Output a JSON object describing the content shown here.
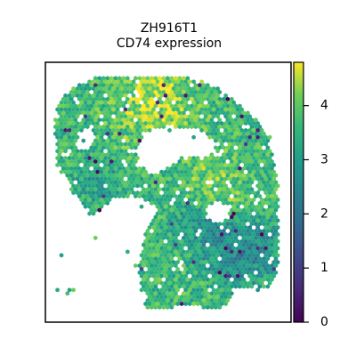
{
  "chart_data": {
    "type": "heatmap",
    "title": "ZH916T1",
    "subtitle": "CD74 expression",
    "xlabel": "",
    "ylabel": "",
    "grid": false,
    "colormap": "viridis",
    "colorbar": {
      "vmin": 0,
      "vmax": 4.8,
      "ticks": [
        0,
        1,
        2,
        3,
        4
      ],
      "tick_labels": [
        "0",
        "1",
        "2",
        "3",
        "4"
      ]
    },
    "marker": "hexagonal spots",
    "colors": {
      "low": "#440154",
      "mid": "#21918c",
      "high": "#fde725"
    }
  }
}
